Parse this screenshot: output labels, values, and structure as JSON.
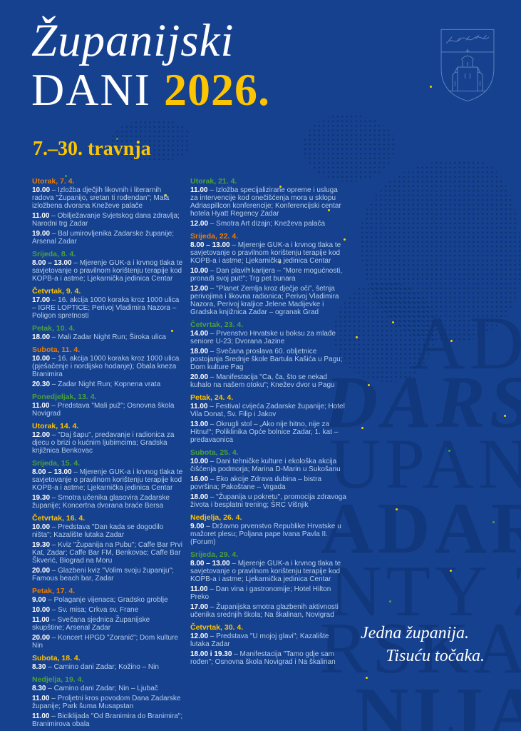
{
  "poster": {
    "title_line1": "Županijski",
    "title_line2": "DANI",
    "title_year": "2026.",
    "date_range": "7.–30. travnja",
    "slogan_line1": "Jedna županija.",
    "slogan_line2": "Tisuću točaka.",
    "coat_of_arms": "zadar-county-coat-of-arms"
  },
  "colors": {
    "background": "#16418f",
    "accent_yellow": "#fdc500",
    "accent_orange": "#ee7c00",
    "accent_green": "#4aa23c",
    "body_text": "#b5cdea",
    "time_text": "#ffffff"
  },
  "watermark": {
    "rows": [
      "ADA",
      "DARSK",
      "UPANIJA",
      "ADAR C",
      "NTY ZA",
      "RSKA Ž",
      "NIJA Z"
    ]
  },
  "schedule": {
    "separator": "–",
    "columns": [
      {
        "days": [
          {
            "label": "Utorak, 7. 4.",
            "color": "orange",
            "events": [
              {
                "time": "10.00",
                "text": "Izložba dječjih likovnih i literarnih radova \"Županijo, sretan ti rođendan\"; Mala izložbena dvorana Kneževe palače"
              },
              {
                "time": "11.00",
                "text": "Obilježavanje Svjetskog dana zdravlja; Narodni trg Zadar"
              },
              {
                "time": "19.00",
                "text": "Bal umirovljenika Zadarske županije; Arsenal Zadar"
              }
            ]
          },
          {
            "label": "Srijeda, 8. 4.",
            "color": "green",
            "events": [
              {
                "time": "8.00 – 13.00",
                "text": "Mjerenje GUK-a i krvnog tlaka te savjetovanje o pravilnom korištenju terapije kod KOPB-a i astme; Ljekarnička jedinica Centar"
              }
            ]
          },
          {
            "label": "Četvrtak, 9. 4.",
            "color": "yellow",
            "events": [
              {
                "time": "17.00",
                "text": "16. akcija 1000 koraka kroz 1000 ulica – IGRE LOPTICE; Perivoj Vladimira Nazora – Poligon spretnosti"
              }
            ]
          },
          {
            "label": "Petak, 10. 4.",
            "color": "green",
            "events": [
              {
                "time": "18.00",
                "text": "Mali Zadar Night Run; Široka ulica"
              }
            ]
          },
          {
            "label": "Subota, 11. 4.",
            "color": "orange",
            "events": [
              {
                "time": "10.00",
                "text": "16. akcija 1000 koraka kroz 1000 ulica (pješačenje i nordijsko hodanje); Obala kneza Branimira"
              },
              {
                "time": "20.30",
                "text": "Zadar Night Run; Kopnena vrata"
              }
            ]
          },
          {
            "label": "Ponedjeljak, 13. 4.",
            "color": "green",
            "events": [
              {
                "time": "11.00",
                "text": "Predstava \"Mali puž\"; Osnovna škola Novigrad"
              }
            ]
          },
          {
            "label": "Utorak, 14. 4.",
            "color": "yellow",
            "events": [
              {
                "time": "12.00",
                "text": "\"Daj šapu\", predavanje i radionica za djecu o brizi o kućnim ljubimcima; Gradska knjižnica Benkovac"
              }
            ]
          },
          {
            "label": "Srijeda, 15. 4.",
            "color": "green",
            "events": [
              {
                "time": "8.00 – 13.00",
                "text": "Mjerenje GUK-a i krvnog tlaka te savjetovanje o pravilnom korištenju terapije kod KOPB-a i astme; Ljekarnička jedinica Centar"
              },
              {
                "time": "19.30",
                "text": "Smotra učenika glasovira Zadarske županije; Koncertna dvorana braće Bersa"
              }
            ]
          },
          {
            "label": "Četvrtak, 16. 4.",
            "color": "yellow",
            "events": [
              {
                "time": "10.00",
                "text": "Predstava \"Dan kada se dogodilo ništa\"; Kazalište lutaka Zadar"
              },
              {
                "time": "19.30",
                "text": "Kviz \"Županija na Pubu\"; Caffe Bar Prvi Kat, Zadar; Caffe Bar FM, Benkovac; Caffe Bar Škverić, Biograd na Moru"
              },
              {
                "time": "20.00",
                "text": "Glazbeni kviz \"Volim svoju županiju\"; Famous beach bar, Zadar"
              }
            ]
          },
          {
            "label": "Petak, 17. 4.",
            "color": "orange",
            "events": [
              {
                "time": "9.00",
                "text": "Polaganje vijenaca; Gradsko groblje"
              },
              {
                "time": "10.00",
                "text": "Sv. misa; Crkva sv. Frane"
              },
              {
                "time": "11.00",
                "text": "Svečana sjednica Županijske skupštine; Arsenal Zadar"
              },
              {
                "time": "20.00",
                "text": "Koncert HPGD \"Zoranić\"; Dom kulture Nin"
              }
            ]
          },
          {
            "label": "Subota, 18. 4.",
            "color": "yellow",
            "events": [
              {
                "time": "8.30",
                "text": "Camino dani Zadar; Kožino – Nin"
              }
            ]
          },
          {
            "label": "Nedjelja, 19. 4.",
            "color": "green",
            "events": [
              {
                "time": "8.30",
                "text": "Camino dani Zadar; Nin – Ljubač"
              },
              {
                "time": "11.00",
                "text": "Proljetni kros povodom Dana Zadarske županije; Park šuma Musapstan"
              },
              {
                "time": "11.00",
                "text": "Biciklijada \"Od Branimira do Branimira\"; Branimirova obala"
              }
            ]
          }
        ]
      },
      {
        "days": [
          {
            "label": "Utorak, 21. 4.",
            "color": "green",
            "events": [
              {
                "time": "11.00",
                "text": "Izložba specijalizirane opreme i usluga za intervencije kod onečišćenja mora u sklopu Adriaspillcon konferencije; Konferencijski centar hotela Hyatt Regency Zadar"
              },
              {
                "time": "12.00",
                "text": "Smotra Art dizajn; Kneževa palača"
              }
            ]
          },
          {
            "label": "Srijeda, 22. 4.",
            "color": "orange",
            "events": [
              {
                "time": "8.00 – 13.00",
                "text": "Mjerenje GUK-a i krvnog tlaka te savjetovanje o pravilnom korištenju terapije kod KOPB-a i astme; Ljekarnička jedinica Centar"
              },
              {
                "time": "10.00",
                "text": "Dan plavih karijera – \"More mogućnosti, pronađi svoj put!\"; Trg pet bunara"
              },
              {
                "time": "12.00",
                "text": "\"Planet Zemlja kroz dječje oči\", šetnja perivojima i likovna radionica; Perivoj Vladimira Nazora, Perivoj kraljice Jelene Madijevke i Gradska knjižnica Zadar – ogranak Grad"
              }
            ]
          },
          {
            "label": "Četvrtak, 23. 4.",
            "color": "green",
            "events": [
              {
                "time": "14.00",
                "text": "Prvenstvo Hrvatske u boksu za mlađe seniore U-23; Dvorana Jazine"
              },
              {
                "time": "18.00",
                "text": "Svečana proslava 60. obljetnice postojanja Srednje škole Bartula Kašića u Pagu; Dom kulture Pag"
              },
              {
                "time": "20.00",
                "text": "Manifestacija \"Ca, ča, što se nekad kuhalo na našem otoku\"; Knežev dvor u Pagu"
              }
            ]
          },
          {
            "label": "Petak, 24. 4.",
            "color": "yellow",
            "events": [
              {
                "time": "11.00",
                "text": "Festival cvijeća Zadarske županije; Hotel Vila Donat, Sv. Filip i Jakov"
              },
              {
                "time": "13.00",
                "text": "Okrugli stol – „Ako nije hitno, nije za Hitnu!“; Poliklinika Opće bolnice Zadar, 1. kat – predavaonica"
              }
            ]
          },
          {
            "label": "Subota, 25. 4.",
            "color": "green",
            "events": [
              {
                "time": "10.00",
                "text": "Dani tehničke kulture i ekološka akcija čišćenja podmorja; Marina D-Marin u Sukošanu"
              },
              {
                "time": "16.00",
                "text": "Eko akcije Zdrava dubina – bistra površina; Pakoštane – Vrgada"
              },
              {
                "time": "18.00",
                "text": "\"Županija u pokretu\", promocija zdravoga života i besplatni trening; ŠRC Višnjik"
              }
            ]
          },
          {
            "label": "Nedjelja, 26. 4.",
            "color": "yellow",
            "events": [
              {
                "time": "9.00",
                "text": "Državno prvenstvo Republike Hrvatske u mažoret plesu; Poljana pape Ivana Pavla II. (Forum)"
              }
            ]
          },
          {
            "label": "Srijeda, 29. 4.",
            "color": "green",
            "events": [
              {
                "time": "8.00 – 13.00",
                "text": "Mjerenje GUK-a i krvnog tlaka te savjetovanje o pravilnom korištenju terapije kod KOPB-a i astme; Ljekarnička jedinica Centar"
              },
              {
                "time": "11.00",
                "text": "Dan vina i gastronomije; Hotel Hilton Preko"
              },
              {
                "time": "17.00",
                "text": "Županijska smotra glazbenih aktivnosti učenika srednjih škola; Na škalinan, Novigrad"
              }
            ]
          },
          {
            "label": "Četvrtak, 30. 4.",
            "color": "yellow",
            "events": [
              {
                "time": "12.00",
                "text": "Predstava \"U mojoj glavi\"; Kazalište lutaka Zadar"
              },
              {
                "time": "18.00 i 19.30",
                "text": "Manifestacija \"Tamo gdje sam rođen\"; Osnovna škola Novigrad i Na škalinan"
              }
            ]
          }
        ]
      }
    ]
  }
}
